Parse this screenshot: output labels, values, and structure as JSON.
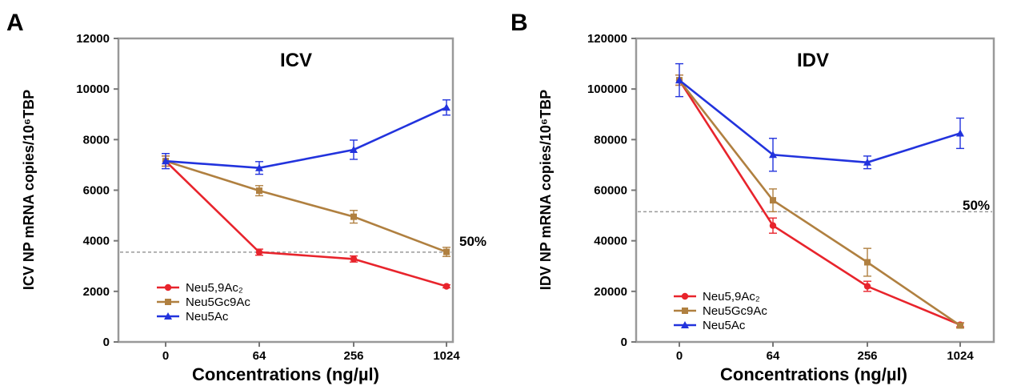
{
  "figure": {
    "panels": [
      "A",
      "B"
    ]
  },
  "chart_data": [
    {
      "type": "line",
      "panel": "A",
      "title": "ICV",
      "xlabel": "Concentrations (ng/µl)",
      "ylabel": "ICV NP mRNA copies/10⁶TBP",
      "categories": [
        "0",
        "64",
        "256",
        "1024"
      ],
      "ylim": [
        0,
        12000
      ],
      "yticks": [
        0,
        2000,
        4000,
        6000,
        8000,
        10000,
        12000
      ],
      "grid": false,
      "legend_position": "bottom-left",
      "reference_line": {
        "value": 3550,
        "label": "50%"
      },
      "series": [
        {
          "name": "Neu5,9Ac₂",
          "color": "#e8242c",
          "marker": "circle",
          "values": [
            7150,
            3550,
            3280,
            2200
          ],
          "errors": [
            200,
            120,
            120,
            60
          ]
        },
        {
          "name": "Neu5Gc9Ac",
          "color": "#b08040",
          "marker": "square",
          "values": [
            7150,
            5980,
            4950,
            3560
          ],
          "errors": [
            200,
            200,
            250,
            180
          ]
        },
        {
          "name": "Neu5Ac",
          "color": "#2233dd",
          "marker": "triangle",
          "values": [
            7150,
            6880,
            7600,
            9270
          ],
          "errors": [
            300,
            250,
            380,
            300
          ]
        }
      ]
    },
    {
      "type": "line",
      "panel": "B",
      "title": "IDV",
      "xlabel": "Concentrations (ng/µl)",
      "ylabel": "IDV NP mRNA copies/10⁶TBP",
      "categories": [
        "0",
        "64",
        "256",
        "1024"
      ],
      "ylim": [
        0,
        120000
      ],
      "yticks": [
        0,
        20000,
        40000,
        60000,
        80000,
        100000,
        120000
      ],
      "grid": false,
      "legend_position": "bottom-left",
      "reference_line": {
        "value": 51500,
        "label": "50%"
      },
      "series": [
        {
          "name": "Neu5,9Ac₂",
          "color": "#e8242c",
          "marker": "circle",
          "values": [
            103500,
            46000,
            22000,
            6800
          ],
          "errors": [
            2000,
            3000,
            2000,
            800
          ]
        },
        {
          "name": "Neu5Gc9Ac",
          "color": "#b08040",
          "marker": "square",
          "values": [
            103500,
            56000,
            31500,
            6500
          ],
          "errors": [
            2000,
            4500,
            5500,
            1000
          ]
        },
        {
          "name": "Neu5Ac",
          "color": "#2233dd",
          "marker": "triangle",
          "values": [
            103500,
            74000,
            71000,
            82500
          ],
          "errors": [
            6500,
            6500,
            2500,
            6000
          ]
        }
      ]
    }
  ]
}
